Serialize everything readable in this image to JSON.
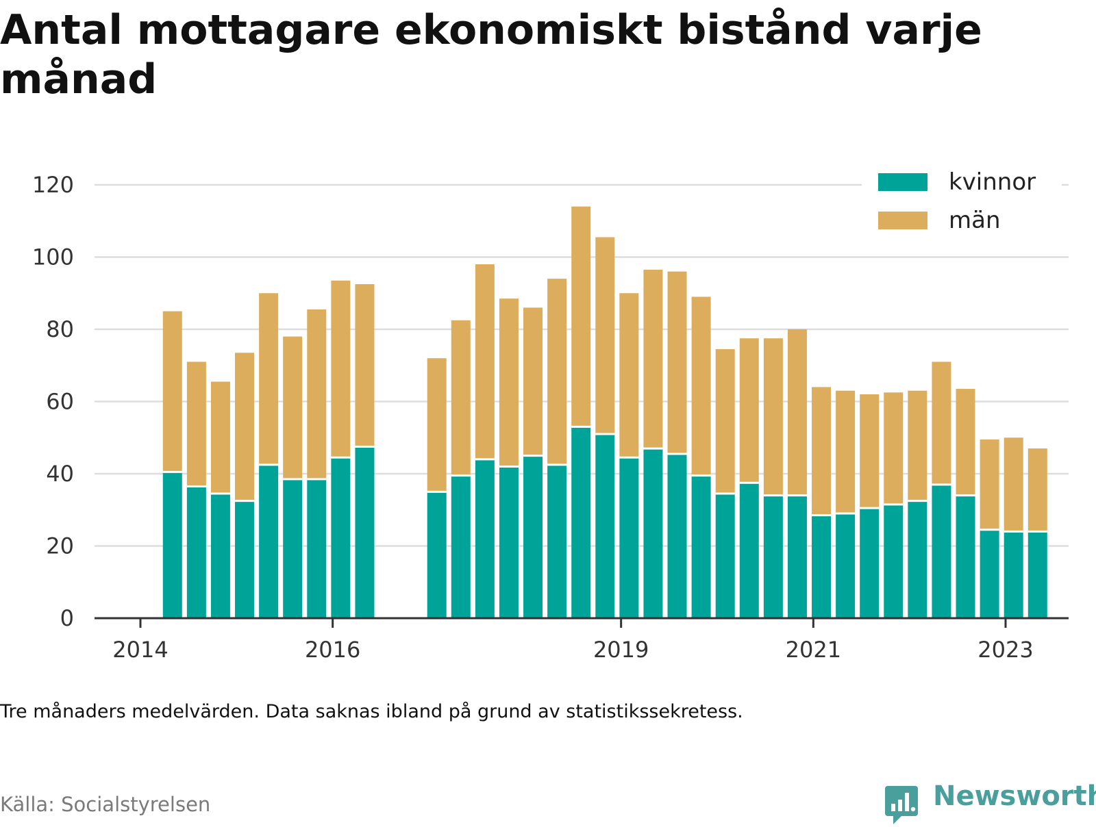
{
  "title": "Antal mottagare ekonomiskt bistånd varje månad",
  "note": "Tre månaders medelvärden. Data saknas ibland på grund av statistikssekretess.",
  "source": "Källa: Socialstyrelsen",
  "brand": "Newsworthy",
  "colors": {
    "kvinnor": "#00a398",
    "man": "#dbad5c",
    "grid": "#dddddd",
    "axis": "#333333",
    "brand": "#4a9e9b"
  },
  "chart_data": {
    "type": "bar",
    "stacked": true,
    "title": "Antal mottagare ekonomiskt bistånd varje månad",
    "xlabel": "",
    "ylabel": "",
    "ylim": [
      0,
      120
    ],
    "yticks": [
      0,
      20,
      40,
      60,
      80,
      100,
      120
    ],
    "xticks": [
      "2014",
      "2016",
      "2019",
      "2021",
      "2023"
    ],
    "grid": true,
    "legend_position": "top-right",
    "x": [
      "2014-05",
      "2014-08",
      "2014-11",
      "2015-02",
      "2015-05",
      "2015-08",
      "2015-11",
      "2016-02",
      "2016-05",
      "2017-02",
      "2017-05",
      "2017-08",
      "2017-11",
      "2018-02",
      "2018-05",
      "2018-08",
      "2018-11",
      "2019-02",
      "2019-05",
      "2019-08",
      "2019-11",
      "2020-02",
      "2020-05",
      "2020-08",
      "2020-11",
      "2021-02",
      "2021-05",
      "2021-08",
      "2021-11",
      "2022-02",
      "2022-05",
      "2022-08",
      "2022-11",
      "2023-02",
      "2023-05"
    ],
    "series": [
      {
        "name": "kvinnor",
        "values": [
          40.5,
          36.5,
          34.5,
          32.5,
          42.5,
          38.5,
          38.5,
          44.5,
          47.5,
          35,
          39.5,
          44,
          42,
          45,
          42.5,
          53,
          51,
          44.5,
          47,
          45.5,
          39.5,
          34.5,
          37.5,
          34,
          34,
          28.5,
          29,
          30.5,
          31.5,
          32.5,
          37,
          34,
          24.5,
          24,
          24
        ]
      },
      {
        "name": "män",
        "values": [
          44.5,
          34.5,
          31,
          41,
          47.5,
          39.5,
          47,
          49,
          45,
          37,
          43,
          54,
          46.5,
          41,
          51.5,
          61,
          54.5,
          45.5,
          49.5,
          50.5,
          49.5,
          40,
          40,
          43.5,
          46,
          35.5,
          34,
          31.5,
          31,
          30.5,
          34,
          29.5,
          25,
          26,
          23
        ]
      }
    ]
  }
}
